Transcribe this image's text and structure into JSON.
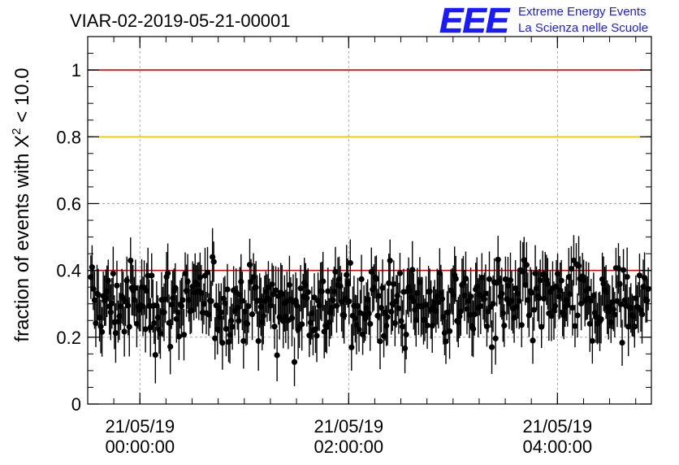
{
  "chart_data": {
    "type": "scatter",
    "title": "VIAR-02-2019-05-21-00001",
    "ylabel_prefix": "fraction of events with X",
    "ylabel_sup": "2",
    "ylabel_suffix": " < 10.0",
    "ylim": [
      0,
      1.1
    ],
    "yticks": [
      "0",
      "0.2",
      "0.4",
      "0.6",
      "0.8",
      "1"
    ],
    "xticks": [
      {
        "date": "21/05/19",
        "time": "00:00:00"
      },
      {
        "date": "21/05/19",
        "time": "02:00:00"
      },
      {
        "date": "21/05/19",
        "time": "04:00:00"
      }
    ],
    "x_hours_range": [
      -0.5,
      4.9
    ],
    "grid": true,
    "reference_lines": [
      {
        "y": 1.0,
        "color": "#e00000"
      },
      {
        "y": 0.8,
        "color": "#ffc000"
      },
      {
        "y": 0.4,
        "color": "#e00000"
      }
    ],
    "points_count": 450,
    "marker_color": "#000000",
    "series_description_typical_mean": 0.3
  },
  "logo": {
    "letters": "EEE",
    "line1": "Extreme Energy Events",
    "line2": "La Scienza nelle Scuole",
    "color": "#1a1aff"
  }
}
